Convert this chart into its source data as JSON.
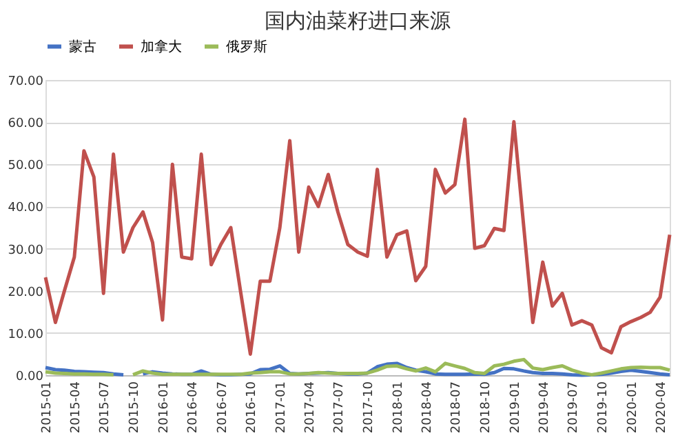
{
  "chart_data": {
    "type": "line",
    "title": "国内油菜籽进口来源",
    "x": [
      "2015-01",
      "2015-02",
      "2015-03",
      "2015-04",
      "2015-05",
      "2015-06",
      "2015-07",
      "2015-08",
      "2015-09",
      "2015-10",
      "2015-11",
      "2015-12",
      "2016-01",
      "2016-02",
      "2016-03",
      "2016-04",
      "2016-05",
      "2016-06",
      "2016-07",
      "2016-08",
      "2016-09",
      "2016-10",
      "2016-11",
      "2016-12",
      "2017-01",
      "2017-02",
      "2017-03",
      "2017-04",
      "2017-05",
      "2017-06",
      "2017-07",
      "2017-08",
      "2017-09",
      "2017-10",
      "2017-11",
      "2017-12",
      "2018-01",
      "2018-02",
      "2018-03",
      "2018-04",
      "2018-05",
      "2018-06",
      "2018-07",
      "2018-08",
      "2018-09",
      "2018-10",
      "2018-11",
      "2018-12",
      "2019-01",
      "2019-02",
      "2019-03",
      "2019-04",
      "2019-05",
      "2019-06",
      "2019-07",
      "2019-08",
      "2019-09",
      "2019-10",
      "2019-11",
      "2019-12",
      "2020-01",
      "2020-02",
      "2020-03",
      "2020-04",
      "2020-05"
    ],
    "series": [
      {
        "name": "蒙古",
        "color": "#4472c4",
        "values": [
          1.8,
          1.3,
          1.2,
          0.9,
          0.8,
          0.7,
          0.6,
          0.3,
          0.1,
          null,
          0.3,
          0.8,
          0.5,
          0.3,
          0.2,
          0.2,
          1.0,
          0.2,
          0.1,
          0.1,
          0.2,
          0.3,
          1.3,
          1.4,
          2.2,
          0.4,
          0.3,
          0.4,
          0.5,
          0.6,
          0.4,
          0.3,
          0.3,
          0.5,
          2.0,
          2.6,
          2.8,
          1.8,
          1.2,
          0.8,
          0.3,
          0.2,
          0.2,
          0.2,
          0.3,
          0.2,
          0.6,
          1.6,
          1.5,
          1.0,
          0.6,
          0.4,
          0.4,
          0.3,
          0.1,
          0.0,
          0.1,
          0.2,
          0.5,
          0.9,
          1.2,
          0.9,
          0.6,
          0.3,
          0.1
        ]
      },
      {
        "name": "加拿大",
        "color": "#c0504d",
        "values": [
          23.2,
          12.5,
          20,
          28,
          53.2,
          47,
          19.4,
          52.4,
          29.2,
          35,
          38.7,
          31.5,
          13.1,
          50,
          28,
          27.6,
          52.4,
          26.2,
          31,
          35,
          19.6,
          5,
          22.3,
          22.3,
          35,
          55.6,
          29.2,
          44.6,
          40,
          47.6,
          38.7,
          31,
          29.2,
          28.2,
          48.8,
          28,
          33.3,
          34.2,
          22.4,
          25.8,
          48.8,
          43.2,
          45.2,
          60.7,
          30.1,
          30.7,
          34.8,
          34.3,
          60.1,
          35,
          12.5,
          26.8,
          16.4,
          19.4,
          11.9,
          12.9,
          11.9,
          6.5,
          5.3,
          11.5,
          12.7,
          13.7,
          14.9,
          18.5,
          33.3
        ]
      },
      {
        "name": "俄罗斯",
        "color": "#9bbb59",
        "values": [
          0.8,
          0.5,
          0.4,
          0.3,
          0.3,
          0.2,
          0.2,
          0.1,
          null,
          0.1,
          1.0,
          0.5,
          0.2,
          0.2,
          0.2,
          0.2,
          0.2,
          0.2,
          0.2,
          0.2,
          0.2,
          0.5,
          0.6,
          0.8,
          0.8,
          0.3,
          0.3,
          0.4,
          0.6,
          0.5,
          0.4,
          0.4,
          0.4,
          0.5,
          1.2,
          2.1,
          2.2,
          1.5,
          1.0,
          1.7,
          0.8,
          2.8,
          2.2,
          1.6,
          0.6,
          0.4,
          2.2,
          2.6,
          3.3,
          3.7,
          1.7,
          1.3,
          1.8,
          2.2,
          1.2,
          0.5,
          0.1,
          0.5,
          1.0,
          1.5,
          1.8,
          1.9,
          1.8,
          1.8,
          1.2
        ]
      }
    ],
    "xlim": [
      "2015-01",
      "2020-05"
    ],
    "xticks": [
      "2015-01",
      "2015-04",
      "2015-07",
      "2015-10",
      "2016-01",
      "2016-04",
      "2016-07",
      "2016-10",
      "2017-01",
      "2017-04",
      "2017-07",
      "2017-10",
      "2018-01",
      "2018-04",
      "2018-07",
      "2018-10",
      "2019-01",
      "2019-04",
      "2019-07",
      "2019-10",
      "2020-01",
      "2020-04"
    ],
    "ylim": [
      0,
      70
    ],
    "yticks": [
      {
        "value": 0,
        "label": "0.00"
      },
      {
        "value": 10,
        "label": "10.00"
      },
      {
        "value": 20,
        "label": "20.00"
      },
      {
        "value": 30,
        "label": "30.00"
      },
      {
        "value": 40,
        "label": "40.00"
      },
      {
        "value": 50,
        "label": "50.00"
      },
      {
        "value": 60,
        "label": "60.00"
      },
      {
        "value": 70,
        "label": "70.00"
      }
    ],
    "grid": "y",
    "legend": "top",
    "marker": "none",
    "line_style": "solid"
  }
}
